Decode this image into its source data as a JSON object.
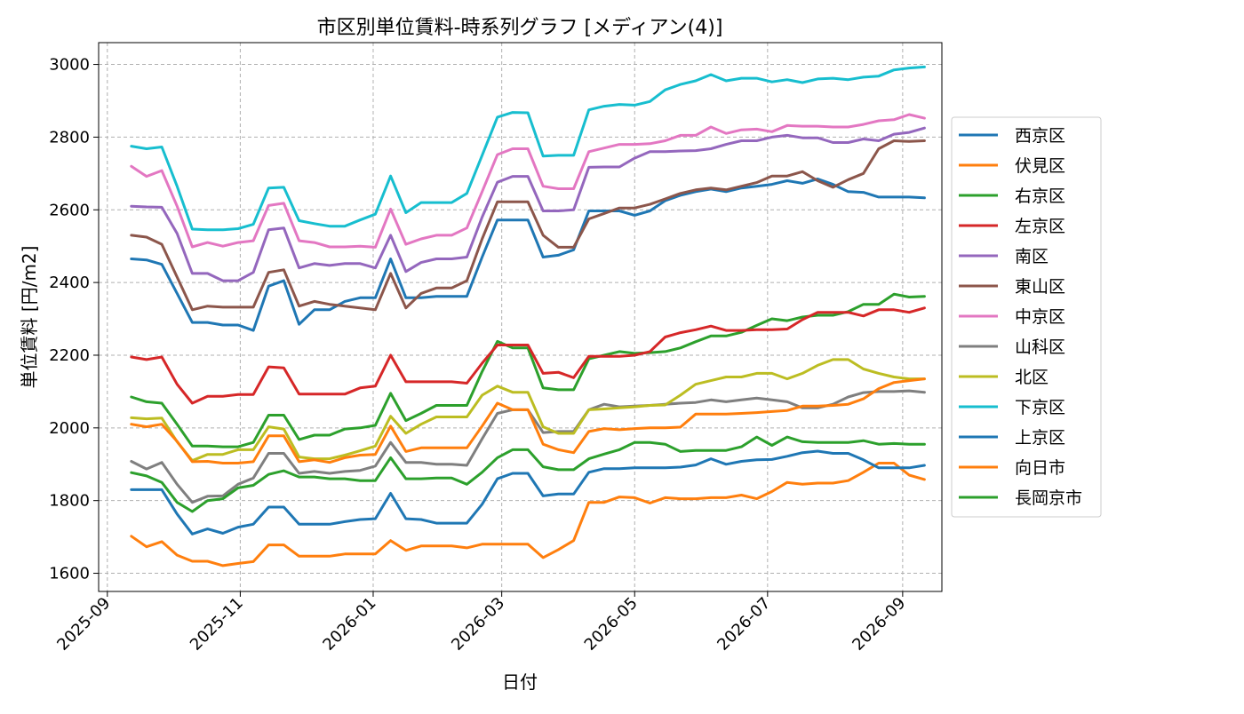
{
  "chart_data": {
    "type": "line",
    "title": "市区別単位賃料-時系列グラフ [メディアン(4)]",
    "xlabel": "日付",
    "ylabel": "単位賃料 [円/m2]",
    "xlim": [
      "2025-08-28",
      "2026-09-19"
    ],
    "ylim": [
      1550,
      3060
    ],
    "x_ticks": [
      "2025-09",
      "2025-11",
      "2026-01",
      "2026-03",
      "2026-05",
      "2026-07",
      "2026-09"
    ],
    "y_ticks": [
      1600,
      1800,
      2000,
      2200,
      2400,
      2600,
      2800,
      3000
    ],
    "grid": true,
    "legend_position": "right",
    "x": [
      "2025-09-12",
      "2025-09-19",
      "2025-09-26",
      "2025-10-03",
      "2025-10-10",
      "2025-10-17",
      "2025-10-24",
      "2025-10-31",
      "2025-11-07",
      "2025-11-14",
      "2025-11-21",
      "2025-11-28",
      "2025-12-05",
      "2025-12-12",
      "2025-12-19",
      "2025-12-26",
      "2026-01-02",
      "2026-01-09",
      "2026-01-16",
      "2026-01-23",
      "2026-01-30",
      "2026-02-06",
      "2026-02-13",
      "2026-02-20",
      "2026-02-27",
      "2026-03-06",
      "2026-03-13",
      "2026-03-20",
      "2026-03-27",
      "2026-04-03",
      "2026-04-10",
      "2026-04-17",
      "2026-04-24",
      "2026-05-01",
      "2026-05-08",
      "2026-05-15",
      "2026-05-22",
      "2026-05-29",
      "2026-06-05",
      "2026-06-12",
      "2026-06-19",
      "2026-06-26",
      "2026-07-03",
      "2026-07-10",
      "2026-07-17",
      "2026-07-24",
      "2026-07-31",
      "2026-08-07",
      "2026-08-14",
      "2026-08-21",
      "2026-08-28",
      "2026-09-04",
      "2026-09-11"
    ],
    "series": [
      {
        "name": "西京区",
        "color": "#1f77b4",
        "values": [
          2465,
          2462,
          2450,
          2370,
          2290,
          2290,
          2283,
          2283,
          2268,
          2390,
          2405,
          2285,
          2325,
          2325,
          2348,
          2358,
          2358,
          2465,
          2358,
          2358,
          2362,
          2362,
          2362,
          2470,
          2572,
          2572,
          2572,
          2470,
          2475,
          2490,
          2597,
          2597,
          2597,
          2585,
          2597,
          2625,
          2640,
          2650,
          2657,
          2650,
          2660,
          2665,
          2670,
          2680,
          2673,
          2685,
          2670,
          2650,
          2648,
          2635,
          2635,
          2635,
          2633
        ]
      },
      {
        "name": "伏見区",
        "color": "#ff7f0e",
        "values": [
          1702,
          1673,
          1687,
          1650,
          1633,
          1633,
          1621,
          1627,
          1632,
          1678,
          1678,
          1647,
          1647,
          1647,
          1653,
          1653,
          1653,
          1690,
          1663,
          1675,
          1675,
          1675,
          1670,
          1680,
          1680,
          1680,
          1680,
          1643,
          1665,
          1690,
          1795,
          1795,
          1810,
          1808,
          1793,
          1808,
          1805,
          1805,
          1808,
          1808,
          1815,
          1805,
          1825,
          1850,
          1845,
          1848,
          1848,
          1855,
          1878,
          1903,
          1903,
          1870,
          1858
        ]
      },
      {
        "name": "右京区",
        "color": "#2ca02c",
        "values": [
          2085,
          2072,
          2068,
          2010,
          1950,
          1950,
          1948,
          1948,
          1960,
          2035,
          2035,
          1968,
          1980,
          1980,
          1997,
          2000,
          2007,
          2095,
          2020,
          2040,
          2062,
          2062,
          2062,
          2155,
          2238,
          2220,
          2220,
          2110,
          2105,
          2105,
          2190,
          2200,
          2210,
          2205,
          2207,
          2210,
          2220,
          2237,
          2253,
          2253,
          2263,
          2282,
          2300,
          2295,
          2305,
          2310,
          2310,
          2320,
          2340,
          2340,
          2368,
          2360,
          2362
        ]
      },
      {
        "name": "左京区",
        "color": "#d62728",
        "values": [
          2195,
          2188,
          2195,
          2120,
          2068,
          2087,
          2087,
          2092,
          2092,
          2168,
          2165,
          2093,
          2093,
          2093,
          2093,
          2110,
          2115,
          2200,
          2127,
          2127,
          2127,
          2127,
          2123,
          2178,
          2228,
          2228,
          2228,
          2150,
          2153,
          2138,
          2197,
          2197,
          2197,
          2200,
          2210,
          2250,
          2262,
          2270,
          2280,
          2268,
          2268,
          2270,
          2270,
          2272,
          2298,
          2318,
          2318,
          2318,
          2308,
          2325,
          2325,
          2318,
          2330
        ]
      },
      {
        "name": "南区",
        "color": "#9467bd",
        "values": [
          2610,
          2608,
          2607,
          2535,
          2425,
          2425,
          2405,
          2405,
          2428,
          2545,
          2550,
          2440,
          2452,
          2447,
          2452,
          2452,
          2440,
          2530,
          2430,
          2455,
          2465,
          2465,
          2470,
          2580,
          2676,
          2692,
          2692,
          2597,
          2597,
          2600,
          2717,
          2718,
          2718,
          2742,
          2760,
          2760,
          2762,
          2763,
          2768,
          2780,
          2790,
          2790,
          2800,
          2805,
          2798,
          2798,
          2785,
          2785,
          2795,
          2790,
          2808,
          2813,
          2825
        ]
      },
      {
        "name": "東山区",
        "color": "#8c564b",
        "values": [
          2530,
          2525,
          2505,
          2415,
          2325,
          2335,
          2332,
          2332,
          2332,
          2428,
          2435,
          2335,
          2348,
          2340,
          2335,
          2330,
          2325,
          2425,
          2330,
          2370,
          2385,
          2385,
          2405,
          2520,
          2622,
          2622,
          2622,
          2530,
          2497,
          2497,
          2575,
          2590,
          2605,
          2605,
          2615,
          2630,
          2645,
          2655,
          2660,
          2655,
          2665,
          2675,
          2693,
          2693,
          2705,
          2680,
          2662,
          2683,
          2700,
          2768,
          2790,
          2788,
          2790
        ]
      },
      {
        "name": "中京区",
        "color": "#e377c2",
        "values": [
          2720,
          2692,
          2708,
          2610,
          2498,
          2510,
          2500,
          2510,
          2515,
          2612,
          2618,
          2515,
          2510,
          2498,
          2498,
          2500,
          2497,
          2602,
          2505,
          2520,
          2530,
          2530,
          2550,
          2650,
          2752,
          2768,
          2768,
          2665,
          2658,
          2658,
          2760,
          2770,
          2780,
          2780,
          2782,
          2790,
          2805,
          2805,
          2828,
          2810,
          2820,
          2822,
          2815,
          2832,
          2830,
          2830,
          2828,
          2828,
          2835,
          2845,
          2848,
          2862,
          2852
        ]
      },
      {
        "name": "山科区",
        "color": "#7f7f7f",
        "values": [
          1908,
          1887,
          1905,
          1845,
          1795,
          1812,
          1813,
          1845,
          1862,
          1930,
          1930,
          1875,
          1880,
          1875,
          1880,
          1883,
          1895,
          1960,
          1905,
          1905,
          1900,
          1900,
          1897,
          1970,
          2040,
          2050,
          2050,
          1987,
          1990,
          1990,
          2050,
          2065,
          2058,
          2060,
          2062,
          2065,
          2068,
          2070,
          2077,
          2072,
          2077,
          2082,
          2077,
          2072,
          2055,
          2055,
          2065,
          2085,
          2097,
          2100,
          2100,
          2102,
          2098
        ]
      },
      {
        "name": "北区",
        "color": "#bcbd22",
        "values": [
          2028,
          2025,
          2027,
          1962,
          1910,
          1927,
          1927,
          1940,
          1940,
          2003,
          1997,
          1920,
          1915,
          1915,
          1925,
          1937,
          1950,
          2032,
          1985,
          2010,
          2030,
          2030,
          2030,
          2090,
          2115,
          2098,
          2098,
          2003,
          1985,
          1985,
          2050,
          2052,
          2055,
          2058,
          2062,
          2063,
          2090,
          2120,
          2130,
          2140,
          2140,
          2150,
          2150,
          2135,
          2150,
          2172,
          2188,
          2188,
          2162,
          2150,
          2140,
          2135,
          2135
        ]
      },
      {
        "name": "下京区",
        "color": "#17becf",
        "values": [
          2775,
          2768,
          2773,
          2665,
          2547,
          2545,
          2545,
          2548,
          2560,
          2660,
          2662,
          2570,
          2562,
          2555,
          2555,
          2572,
          2588,
          2693,
          2592,
          2620,
          2620,
          2620,
          2645,
          2750,
          2855,
          2868,
          2867,
          2748,
          2750,
          2750,
          2875,
          2885,
          2890,
          2888,
          2898,
          2930,
          2945,
          2955,
          2972,
          2955,
          2962,
          2962,
          2952,
          2958,
          2950,
          2960,
          2962,
          2958,
          2965,
          2968,
          2985,
          2990,
          2993
        ]
      },
      {
        "name": "上京区",
        "color": "#1f77b4",
        "values": [
          1830,
          1830,
          1830,
          1763,
          1708,
          1722,
          1710,
          1727,
          1735,
          1782,
          1782,
          1735,
          1735,
          1735,
          1742,
          1748,
          1750,
          1820,
          1750,
          1748,
          1738,
          1738,
          1738,
          1790,
          1860,
          1875,
          1875,
          1813,
          1818,
          1818,
          1878,
          1888,
          1888,
          1890,
          1890,
          1890,
          1892,
          1898,
          1915,
          1900,
          1908,
          1912,
          1913,
          1922,
          1932,
          1936,
          1930,
          1930,
          1912,
          1890,
          1890,
          1890,
          1897
        ]
      },
      {
        "name": "向日市",
        "color": "#ff7f0e",
        "values": [
          2010,
          2003,
          2010,
          1963,
          1907,
          1908,
          1903,
          1903,
          1907,
          1978,
          1978,
          1907,
          1912,
          1905,
          1918,
          1925,
          1927,
          2005,
          1935,
          1945,
          1945,
          1945,
          1945,
          2005,
          2068,
          2050,
          2050,
          1955,
          1940,
          1932,
          1990,
          1998,
          1995,
          1998,
          2000,
          2000,
          2002,
          2038,
          2038,
          2038,
          2040,
          2042,
          2045,
          2048,
          2060,
          2060,
          2062,
          2065,
          2080,
          2108,
          2125,
          2130,
          2135
        ]
      },
      {
        "name": "長岡京市",
        "color": "#2ca02c",
        "values": [
          1877,
          1868,
          1850,
          1795,
          1770,
          1800,
          1805,
          1835,
          1842,
          1872,
          1882,
          1865,
          1865,
          1860,
          1860,
          1855,
          1855,
          1918,
          1860,
          1860,
          1862,
          1862,
          1845,
          1878,
          1918,
          1940,
          1940,
          1893,
          1885,
          1885,
          1915,
          1928,
          1940,
          1960,
          1960,
          1955,
          1935,
          1938,
          1938,
          1938,
          1948,
          1975,
          1952,
          1975,
          1962,
          1960,
          1960,
          1960,
          1965,
          1955,
          1957,
          1955,
          1955
        ]
      }
    ]
  }
}
